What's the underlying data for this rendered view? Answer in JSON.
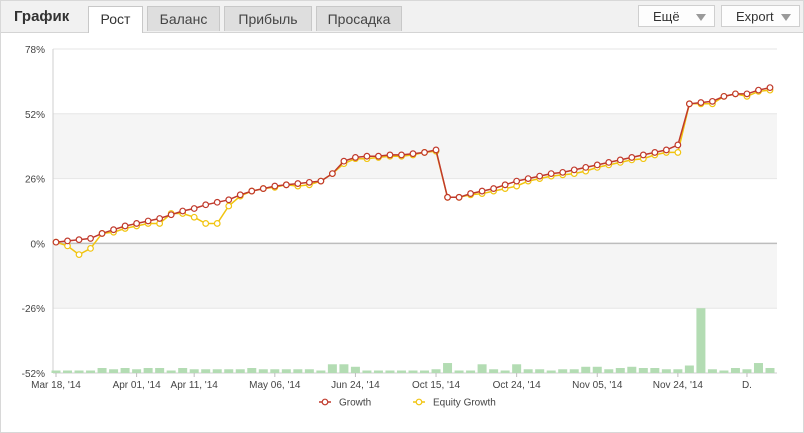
{
  "header": {
    "title": "График",
    "tabs": [
      {
        "label": "Рост",
        "active": true
      },
      {
        "label": "Баланс",
        "active": false
      },
      {
        "label": "Прибыль",
        "active": false
      },
      {
        "label": "Просадка",
        "active": false
      }
    ],
    "more_label": "Ещё",
    "export_label": "Export"
  },
  "colors": {
    "growth": "#c0392b",
    "equity": "#f1c40f",
    "bars": "#b3dcb3",
    "band": "#f5f5f5"
  },
  "chart_data": {
    "type": "line",
    "title": "",
    "xlabel": "",
    "ylabel": "",
    "ylim": [
      -52,
      78
    ],
    "yticks": [
      "78%",
      "52%",
      "26%",
      "0%",
      "-26%",
      "-52%"
    ],
    "ytick_values": [
      78,
      52,
      26,
      0,
      -26,
      -52
    ],
    "x_tick_labels": [
      {
        "index": 0,
        "label": "Mar 18, '14"
      },
      {
        "index": 7,
        "label": "Apr 01, '14"
      },
      {
        "index": 12,
        "label": "Apr 11, '14"
      },
      {
        "index": 19,
        "label": "May 06, '14"
      },
      {
        "index": 26,
        "label": "Jun 24, '14"
      },
      {
        "index": 33,
        "label": "Oct 15, '14"
      },
      {
        "index": 40,
        "label": "Oct 24, '14"
      },
      {
        "index": 47,
        "label": "Nov 05, '14"
      },
      {
        "index": 54,
        "label": "Nov 24, '14"
      },
      {
        "index": 60,
        "label": "D."
      }
    ],
    "legend": [
      {
        "name": "Growth",
        "color": "#c0392b"
      },
      {
        "name": "Equity Growth",
        "color": "#f1c40f"
      }
    ],
    "legend_position": "bottom",
    "series": [
      {
        "name": "Growth",
        "values": [
          0.5,
          1,
          1.5,
          2,
          4,
          5.5,
          7,
          8,
          9,
          10,
          11.5,
          13,
          14,
          15.5,
          16.5,
          17.5,
          19.5,
          21,
          22,
          23,
          23.5,
          24,
          24.5,
          25,
          28,
          33,
          34.5,
          35,
          35,
          35.5,
          35.5,
          36,
          36.5,
          37.5,
          18.5,
          18.5,
          20,
          21,
          22,
          23.5,
          25,
          26,
          27,
          28,
          28.5,
          29.5,
          30.5,
          31.5,
          32.5,
          33.5,
          34.5,
          35.5,
          36.5,
          37.5,
          39.5,
          56,
          56.5,
          57,
          59,
          60,
          60,
          61.5,
          62.5
        ]
      },
      {
        "name": "Equity Growth",
        "values": [
          0.5,
          -1,
          -4.5,
          -2,
          4,
          4.5,
          6,
          7,
          8,
          8,
          12,
          12,
          10.5,
          8,
          8,
          15,
          19,
          21,
          22,
          22.5,
          23.5,
          23,
          23.5,
          25,
          28,
          32,
          34,
          34,
          34.5,
          35,
          35,
          35.5,
          36.5,
          37,
          18.5,
          18.5,
          19.5,
          20,
          21,
          22,
          23,
          25,
          26,
          27,
          27.5,
          28,
          29,
          30.5,
          31.5,
          32.5,
          33.5,
          34,
          35.5,
          36.5,
          36.5,
          56,
          56,
          56,
          59,
          60,
          59,
          61,
          61.5
        ]
      },
      {
        "name": "",
        "kind": "bar",
        "values": [
          1,
          1,
          1,
          1,
          2,
          1.5,
          2,
          1.5,
          2,
          2,
          1,
          2,
          1.5,
          1.5,
          1.5,
          1.5,
          1.5,
          2,
          1.5,
          1.5,
          1.5,
          1.5,
          1.5,
          1,
          3.5,
          3.5,
          2.5,
          1,
          1,
          1,
          1,
          1,
          1,
          1.5,
          4,
          1,
          1,
          3.5,
          1.5,
          1,
          3.5,
          1.5,
          1.5,
          1,
          1.5,
          1.5,
          2.5,
          2.5,
          1.5,
          2,
          2.5,
          2,
          2,
          1.5,
          1.5,
          3,
          26,
          1.5,
          1,
          2,
          1.5,
          4,
          2
        ]
      }
    ]
  }
}
